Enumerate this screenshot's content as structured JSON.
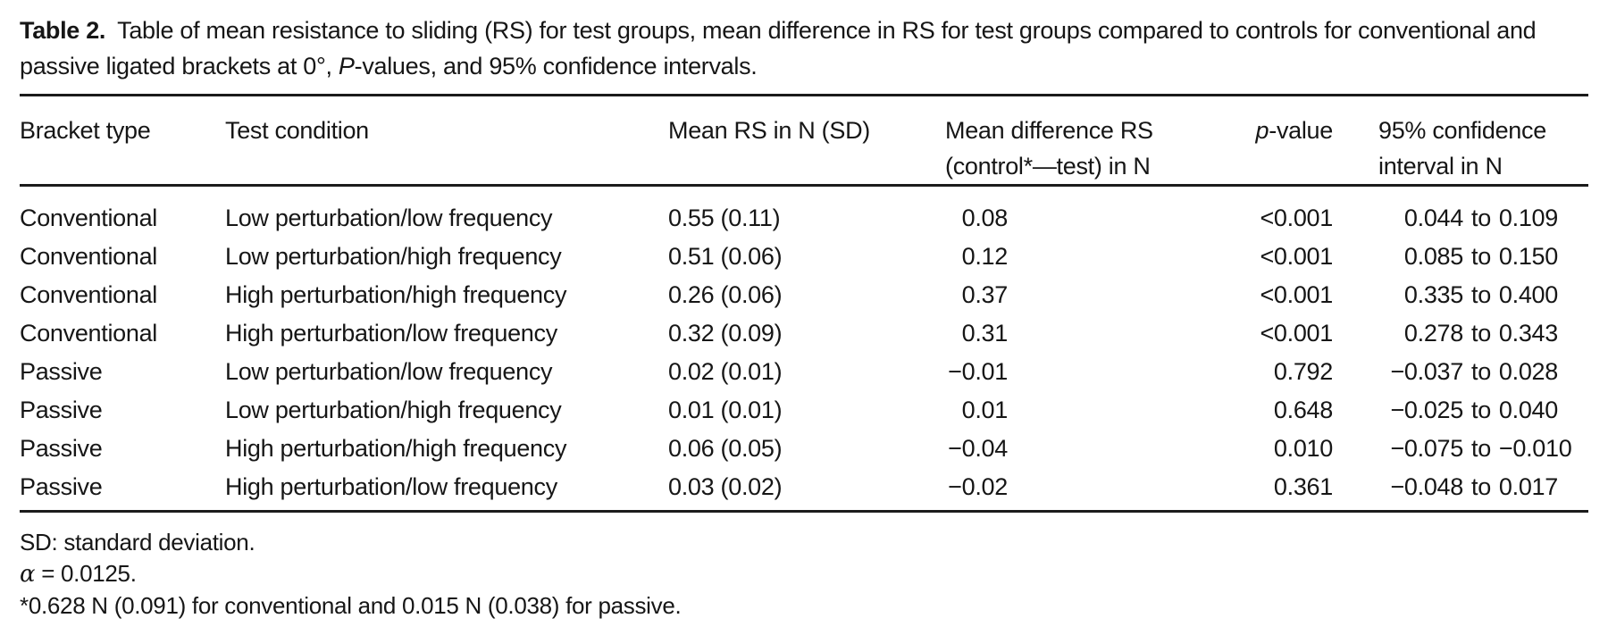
{
  "caption": {
    "label": "Table 2.",
    "text_before_italic": "Table of mean resistance to sliding (RS) for test groups, mean difference in RS for test groups compared to controls for conventional and passive ligated brackets at 0°, ",
    "italic": "P",
    "text_after_italic": "-values, and 95% confidence intervals."
  },
  "table": {
    "columns": {
      "bracket_type": "Bracket type",
      "test_condition": "Test condition",
      "mean_rs": "Mean RS in N (SD)",
      "mean_difference_line1": "Mean difference RS",
      "mean_difference_line2": "(control*—test) in N",
      "p_italic": "p",
      "p_rest": "-value",
      "ci_line1": "95% confidence",
      "ci_line2": "interval in N"
    },
    "ci_joiner": "to",
    "rows": [
      {
        "bracket_type": "Conventional",
        "test_condition": "Low perturbation/low frequency",
        "mean_rs": "0.55 (0.11)",
        "mean_difference": "0.08",
        "p_value": "<0.001",
        "ci_low": "0.044",
        "ci_high": "0.109"
      },
      {
        "bracket_type": "Conventional",
        "test_condition": "Low perturbation/high frequency",
        "mean_rs": "0.51 (0.06)",
        "mean_difference": "0.12",
        "p_value": "<0.001",
        "ci_low": "0.085",
        "ci_high": "0.150"
      },
      {
        "bracket_type": "Conventional",
        "test_condition": "High perturbation/high frequency",
        "mean_rs": "0.26 (0.06)",
        "mean_difference": "0.37",
        "p_value": "<0.001",
        "ci_low": "0.335",
        "ci_high": "0.400"
      },
      {
        "bracket_type": "Conventional",
        "test_condition": "High perturbation/low frequency",
        "mean_rs": "0.32 (0.09)",
        "mean_difference": "0.31",
        "p_value": "<0.001",
        "ci_low": "0.278",
        "ci_high": "0.343"
      },
      {
        "bracket_type": "Passive",
        "test_condition": "Low perturbation/low frequency",
        "mean_rs": "0.02 (0.01)",
        "mean_difference": "−0.01",
        "p_value": "0.792",
        "ci_low": "−0.037",
        "ci_high": "0.028"
      },
      {
        "bracket_type": "Passive",
        "test_condition": "Low perturbation/high frequency",
        "mean_rs": "0.01 (0.01)",
        "mean_difference": "0.01",
        "p_value": "0.648",
        "ci_low": "−0.025",
        "ci_high": "0.040"
      },
      {
        "bracket_type": "Passive",
        "test_condition": "High perturbation/high frequency",
        "mean_rs": "0.06 (0.05)",
        "mean_difference": "−0.04",
        "p_value": "0.010",
        "ci_low": "−0.075",
        "ci_high": "−0.010"
      },
      {
        "bracket_type": "Passive",
        "test_condition": "High perturbation/low frequency",
        "mean_rs": "0.03 (0.02)",
        "mean_difference": "−0.02",
        "p_value": "0.361",
        "ci_low": "−0.048",
        "ci_high": "0.017"
      }
    ]
  },
  "footnotes": {
    "sd": "SD: standard deviation.",
    "alpha_symbol": "α",
    "alpha_rest": " = 0.0125.",
    "asterisk": "*0.628 N (0.091) for conventional and 0.015 N (0.038) for passive."
  }
}
